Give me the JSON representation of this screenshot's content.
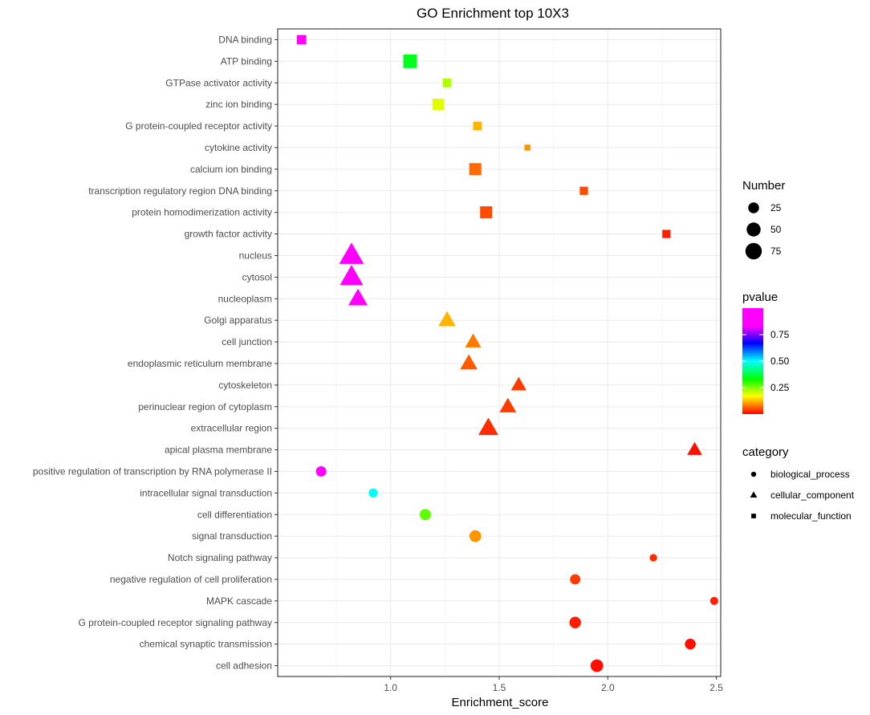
{
  "chart_data": {
    "type": "scatter",
    "title": "GO Enrichment top 10X3",
    "xlabel": "Enrichment_score",
    "ylabel": "",
    "xlim": [
      0.48,
      2.52
    ],
    "xticks": [
      1.0,
      1.5,
      2.0,
      2.5
    ],
    "xtick_labels": [
      "1.0",
      "1.5",
      "2.0",
      "2.5"
    ],
    "grid": true,
    "terms": [
      {
        "term": "DNA binding",
        "category": "molecular_function",
        "x": 0.59,
        "number": 22,
        "pvalue": 0.97
      },
      {
        "term": "ATP binding",
        "category": "molecular_function",
        "x": 1.09,
        "number": 60,
        "pvalue": 0.35
      },
      {
        "term": "GTPase activator activity",
        "category": "molecular_function",
        "x": 1.26,
        "number": 18,
        "pvalue": 0.22
      },
      {
        "term": "zinc ion binding",
        "category": "molecular_function",
        "x": 1.22,
        "number": 40,
        "pvalue": 0.19
      },
      {
        "term": "G protein-coupled receptor activity",
        "category": "molecular_function",
        "x": 1.4,
        "number": 18,
        "pvalue": 0.12
      },
      {
        "term": "cytokine activity",
        "category": "molecular_function",
        "x": 1.63,
        "number": 5,
        "pvalue": 0.1
      },
      {
        "term": "calcium ion binding",
        "category": "molecular_function",
        "x": 1.39,
        "number": 45,
        "pvalue": 0.07
      },
      {
        "term": "transcription regulatory region DNA binding",
        "category": "molecular_function",
        "x": 1.89,
        "number": 15,
        "pvalue": 0.05
      },
      {
        "term": "protein homodimerization activity",
        "category": "molecular_function",
        "x": 1.44,
        "number": 45,
        "pvalue": 0.05
      },
      {
        "term": "growth factor activity",
        "category": "molecular_function",
        "x": 2.27,
        "number": 15,
        "pvalue": 0.02
      },
      {
        "term": "nucleus",
        "category": "cellular_component",
        "x": 0.82,
        "number": 92,
        "pvalue": 0.96
      },
      {
        "term": "cytosol",
        "category": "cellular_component",
        "x": 0.82,
        "number": 80,
        "pvalue": 0.95
      },
      {
        "term": "nucleoplasm",
        "category": "cellular_component",
        "x": 0.85,
        "number": 50,
        "pvalue": 0.9
      },
      {
        "term": "Golgi apparatus",
        "category": "cellular_component",
        "x": 1.26,
        "number": 38,
        "pvalue": 0.12
      },
      {
        "term": "cell junction",
        "category": "cellular_component",
        "x": 1.38,
        "number": 30,
        "pvalue": 0.08
      },
      {
        "term": "endoplasmic reticulum membrane",
        "category": "cellular_component",
        "x": 1.36,
        "number": 38,
        "pvalue": 0.06
      },
      {
        "term": "cytoskeleton",
        "category": "cellular_component",
        "x": 1.59,
        "number": 28,
        "pvalue": 0.04
      },
      {
        "term": "perinuclear region of cytoplasm",
        "category": "cellular_component",
        "x": 1.54,
        "number": 35,
        "pvalue": 0.04
      },
      {
        "term": "extracellular region",
        "category": "cellular_component",
        "x": 1.45,
        "number": 55,
        "pvalue": 0.03
      },
      {
        "term": "apical plasma membrane",
        "category": "cellular_component",
        "x": 2.4,
        "number": 25,
        "pvalue": 0.01
      },
      {
        "term": "positive regulation of transcription by RNA polymerase II",
        "category": "biological_process",
        "x": 0.68,
        "number": 22,
        "pvalue": 0.92
      },
      {
        "term": "intracellular signal transduction",
        "category": "biological_process",
        "x": 0.92,
        "number": 15,
        "pvalue": 0.5
      },
      {
        "term": "cell differentiation",
        "category": "biological_process",
        "x": 1.16,
        "number": 28,
        "pvalue": 0.27
      },
      {
        "term": "signal transduction",
        "category": "biological_process",
        "x": 1.39,
        "number": 32,
        "pvalue": 0.1
      },
      {
        "term": "Notch signaling pathway",
        "category": "biological_process",
        "x": 2.21,
        "number": 8,
        "pvalue": 0.03
      },
      {
        "term": "negative regulation of cell proliferation",
        "category": "biological_process",
        "x": 1.85,
        "number": 22,
        "pvalue": 0.04
      },
      {
        "term": "MAPK cascade",
        "category": "biological_process",
        "x": 2.49,
        "number": 10,
        "pvalue": 0.02
      },
      {
        "term": "G protein-coupled receptor signaling pathway",
        "category": "biological_process",
        "x": 1.85,
        "number": 30,
        "pvalue": 0.02
      },
      {
        "term": "chemical synaptic transmission",
        "category": "biological_process",
        "x": 2.38,
        "number": 25,
        "pvalue": 0.01
      },
      {
        "term": "cell adhesion",
        "category": "biological_process",
        "x": 1.95,
        "number": 38,
        "pvalue": 0.01
      }
    ],
    "legend": {
      "number": {
        "title": "Number",
        "values": [
          25,
          50,
          75
        ],
        "labels": [
          "25",
          "50",
          "75"
        ]
      },
      "pvalue": {
        "title": "pvalue",
        "range": [
          0.0,
          1.0
        ],
        "ticks": [
          0.25,
          0.5,
          0.75
        ],
        "tick_labels": [
          "0.25",
          "0.50",
          "0.75"
        ]
      },
      "category": {
        "title": "category",
        "items": [
          "biological_process",
          "cellular_component",
          "molecular_function"
        ]
      }
    }
  }
}
